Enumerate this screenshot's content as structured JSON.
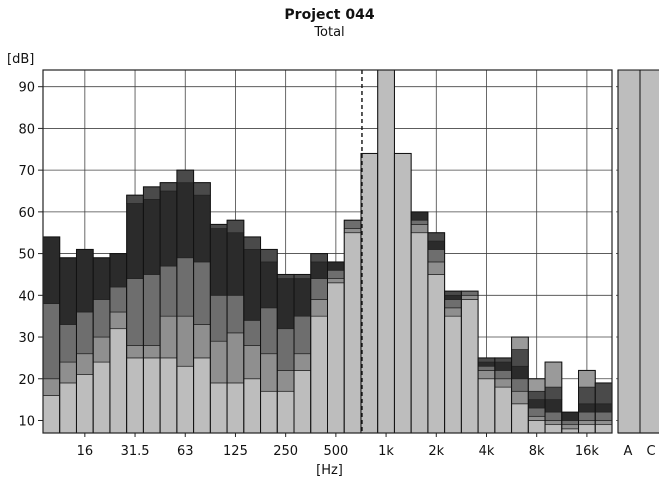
{
  "chart_data": {
    "type": "bar",
    "title": "Project 044",
    "subtitle": "Total",
    "ylabel": "[dB]",
    "xlabel": "[Hz]",
    "ylim": [
      7,
      94
    ],
    "y_ticks": [
      10,
      20,
      30,
      40,
      50,
      60,
      70,
      80,
      90
    ],
    "grid": true,
    "x_tick_labels": [
      "16",
      "31.5",
      "63",
      "125",
      "250",
      "500",
      "1k",
      "2k",
      "4k",
      "8k",
      "16k"
    ],
    "x_tick_bands": [
      "16",
      "31.5",
      "63",
      "125",
      "250",
      "500",
      "1k",
      "2k",
      "4k",
      "8k",
      "16k"
    ],
    "marker_band": "800",
    "bands": [
      {
        "band": "10",
        "total": 54,
        "layers": [
          16,
          20,
          38,
          54
        ]
      },
      {
        "band": "12.5",
        "total": 49,
        "layers": [
          19,
          24,
          33,
          49
        ]
      },
      {
        "band": "16",
        "total": 51,
        "layers": [
          21,
          26,
          36,
          51
        ]
      },
      {
        "band": "20",
        "total": 49,
        "layers": [
          24,
          30,
          39,
          49
        ]
      },
      {
        "band": "25",
        "total": 50,
        "layers": [
          32,
          36,
          42,
          50
        ]
      },
      {
        "band": "31.5",
        "total": 64,
        "layers": [
          25,
          28,
          44,
          62,
          64
        ]
      },
      {
        "band": "40",
        "total": 66,
        "layers": [
          25,
          28,
          45,
          63,
          66
        ]
      },
      {
        "band": "50",
        "total": 67,
        "layers": [
          25,
          35,
          47,
          65,
          67
        ]
      },
      {
        "band": "63",
        "total": 70,
        "layers": [
          23,
          35,
          49,
          67,
          70
        ]
      },
      {
        "band": "80",
        "total": 67,
        "layers": [
          25,
          33,
          48,
          64,
          67
        ]
      },
      {
        "band": "100",
        "total": 57,
        "layers": [
          19,
          29,
          40,
          56,
          57
        ]
      },
      {
        "band": "125",
        "total": 58,
        "layers": [
          19,
          31,
          40,
          55,
          58
        ]
      },
      {
        "band": "160",
        "total": 54,
        "layers": [
          20,
          28,
          34,
          51,
          54
        ]
      },
      {
        "band": "200",
        "total": 51,
        "layers": [
          17,
          26,
          37,
          48,
          51
        ]
      },
      {
        "band": "250",
        "total": 45,
        "layers": [
          17,
          22,
          32,
          44,
          45
        ]
      },
      {
        "band": "315",
        "total": 45,
        "layers": [
          22,
          26,
          35,
          44,
          45
        ]
      },
      {
        "band": "400",
        "total": 50,
        "layers": [
          35,
          39,
          44,
          48,
          50
        ]
      },
      {
        "band": "500",
        "total": 48,
        "layers": [
          43,
          44,
          46,
          48
        ]
      },
      {
        "band": "630",
        "total": 58,
        "layers": [
          55,
          56,
          58
        ]
      },
      {
        "band": "800",
        "total": 74,
        "layers": [
          74
        ]
      },
      {
        "band": "1k",
        "total": 94,
        "layers": [
          94
        ]
      },
      {
        "band": "1.25k",
        "total": 74,
        "layers": [
          74
        ]
      },
      {
        "band": "1.6k",
        "total": 60,
        "layers": [
          55,
          57,
          58,
          60
        ]
      },
      {
        "band": "2k",
        "total": 55,
        "layers": [
          45,
          48,
          51,
          53,
          55
        ]
      },
      {
        "band": "2.5k",
        "total": 41,
        "layers": [
          35,
          37,
          39,
          40,
          41
        ]
      },
      {
        "band": "3.15k",
        "total": 41,
        "layers": [
          39,
          40,
          41
        ]
      },
      {
        "band": "4k",
        "total": 25,
        "layers": [
          20,
          22,
          23,
          24,
          25
        ]
      },
      {
        "band": "5k",
        "total": 25,
        "layers": [
          18,
          20,
          22,
          24,
          25
        ]
      },
      {
        "band": "6.3k",
        "total": 30,
        "layers": [
          14,
          17,
          20,
          23,
          27,
          30
        ]
      },
      {
        "band": "8k",
        "total": 20,
        "layers": [
          10,
          11,
          13,
          15,
          17,
          20
        ]
      },
      {
        "band": "10k",
        "total": 24,
        "layers": [
          9,
          10,
          12,
          15,
          18,
          24
        ]
      },
      {
        "band": "12.5k",
        "total": 12,
        "layers": [
          8,
          9,
          10,
          12
        ]
      },
      {
        "band": "16k",
        "total": 22,
        "layers": [
          9,
          10,
          12,
          14,
          18,
          22
        ]
      },
      {
        "band": "20k",
        "total": 19,
        "layers": [
          9,
          10,
          12,
          14,
          19
        ]
      }
    ],
    "weighted": [
      {
        "label": "A",
        "value": 94
      },
      {
        "label": "C",
        "value": 94
      }
    ],
    "layer_colors": [
      "#bdbdbd",
      "#8f8f8f",
      "#6e6e6e",
      "#2b2b2b",
      "#4a4a4a",
      "#9a9a9a"
    ],
    "bar_stroke": "#222222"
  }
}
